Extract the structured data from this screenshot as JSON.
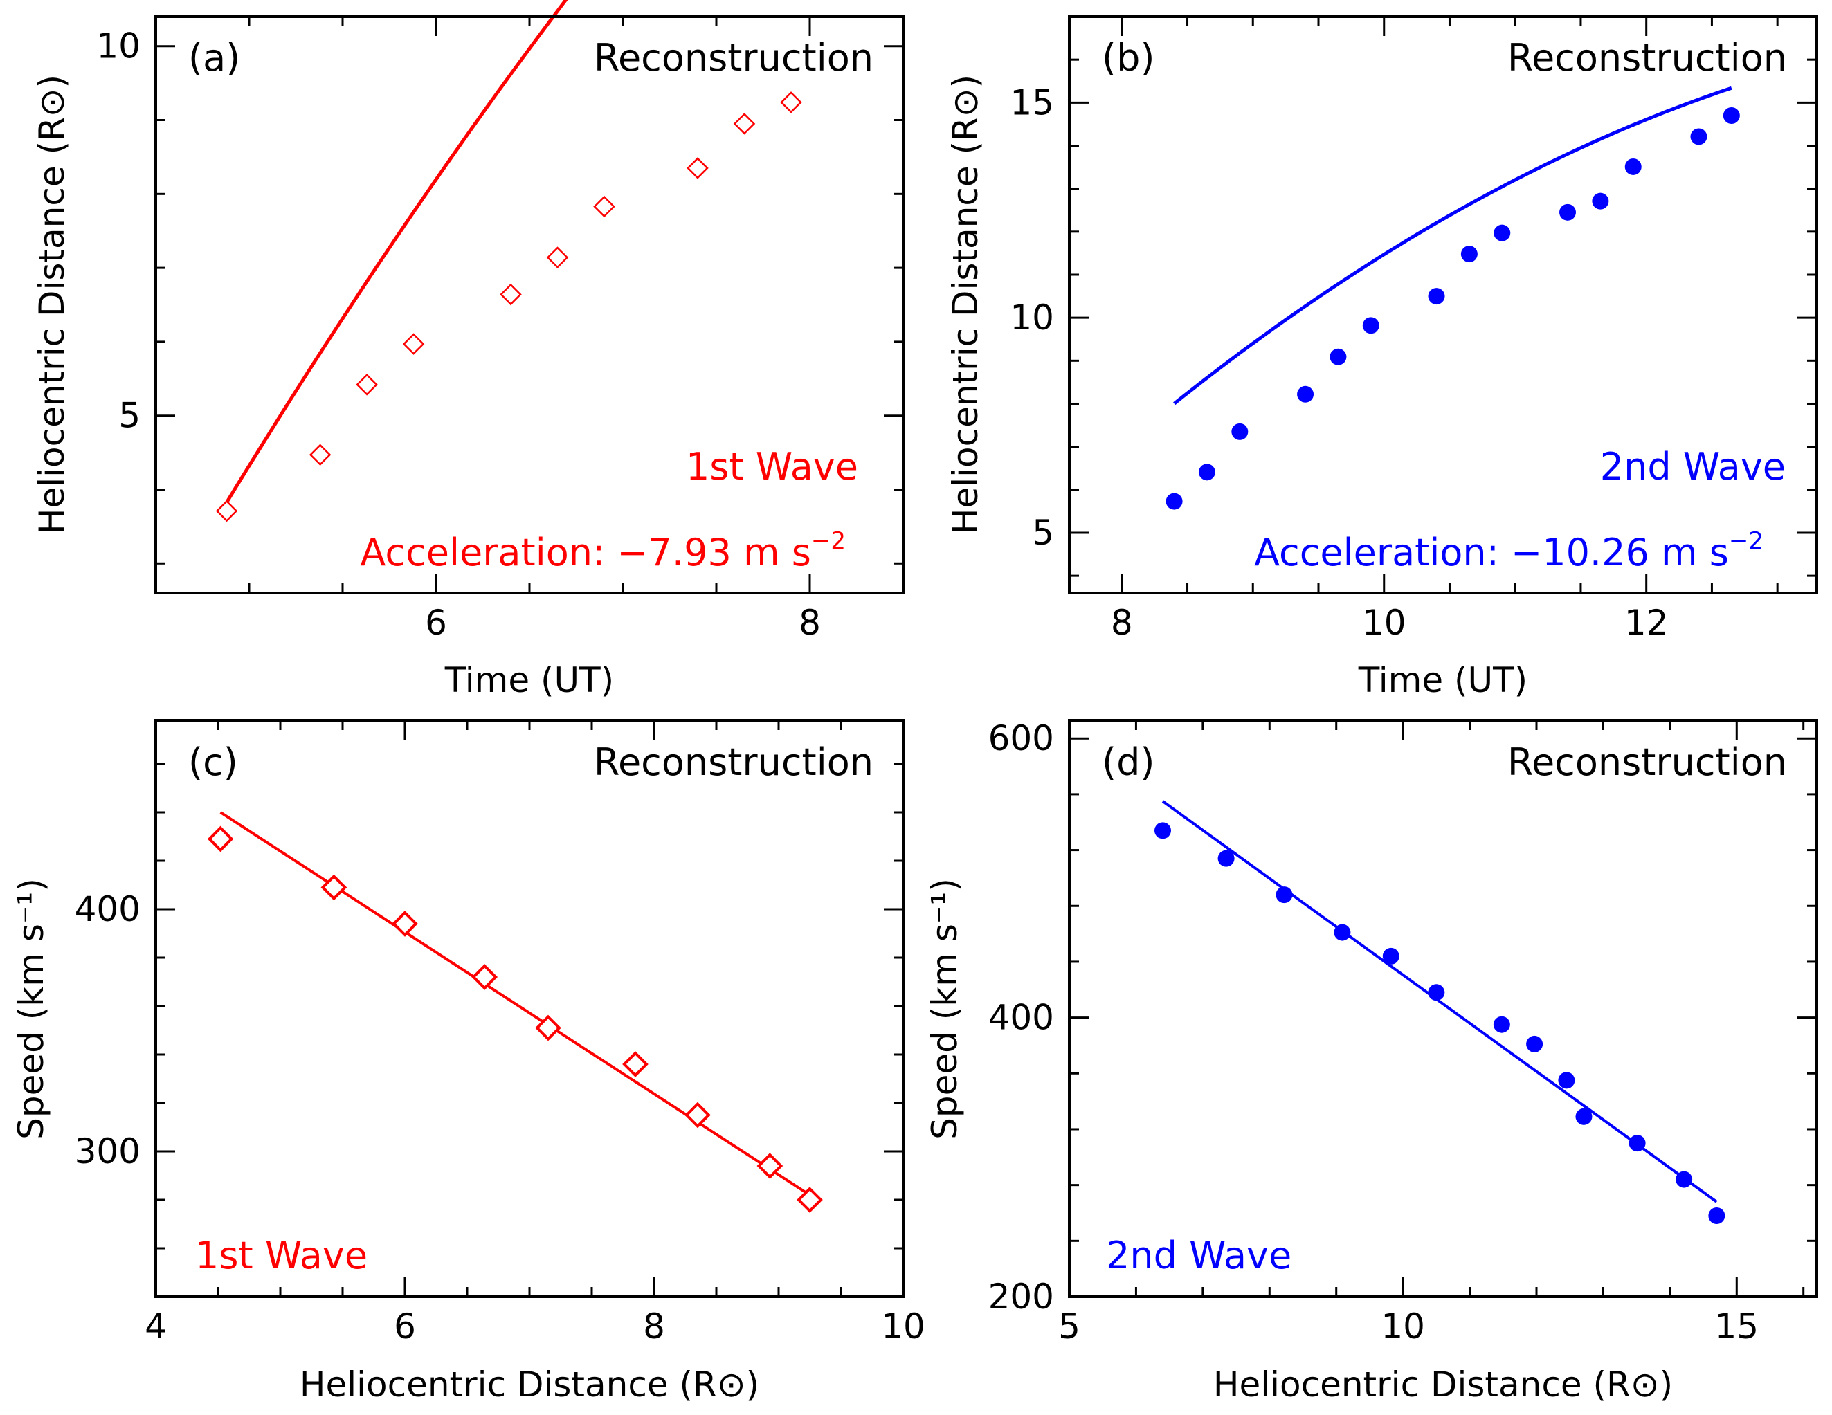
{
  "colors": {
    "first_wave": "#ff0000",
    "second_wave": "#0000ff",
    "axes": "#000000"
  },
  "chart_data": [
    {
      "panel": "(a)",
      "type": "scatter",
      "title": "Reconstruction",
      "xlabel": "Time (UT)",
      "ylabel": "Heliocentric Distance (R⊙)",
      "xlim": [
        4.5,
        8.5
      ],
      "ylim": [
        2.6,
        10.4
      ],
      "xticks": [
        6,
        8
      ],
      "xtick_labels": [
        "6",
        "8"
      ],
      "yticks": [
        5,
        10
      ],
      "ytick_labels": [
        "5",
        "10"
      ],
      "minor_x": 0.5,
      "minor_y": 1,
      "series": [
        {
          "name": "1st Wave",
          "color": "#ff0000",
          "marker": "diamond-open",
          "x": [
            4.88,
            5.38,
            5.63,
            5.88,
            6.4,
            6.65,
            6.9,
            7.4,
            7.65,
            7.9
          ],
          "y": [
            3.71,
            4.47,
            5.42,
            5.97,
            6.64,
            7.14,
            7.83,
            8.35,
            8.95,
            9.24
          ]
        }
      ],
      "fit": {
        "x": [
          4.88,
          7.9
        ],
        "coef": [
          -21.71,
          6.317,
          -0.2221
        ]
      },
      "annotations": {
        "label": "1st Wave",
        "acceleration": "Acceleration: −7.93 m s",
        "superscript": "−2"
      }
    },
    {
      "panel": "(b)",
      "type": "scatter",
      "title": "Reconstruction",
      "xlabel": "Time (UT)",
      "ylabel": "Heliocentric Distance (R⊙)",
      "xlim": [
        7.6,
        13.3
      ],
      "ylim": [
        3.6,
        17
      ],
      "xticks": [
        8,
        10,
        12
      ],
      "xtick_labels": [
        "8",
        "10",
        "12"
      ],
      "yticks": [
        5,
        10,
        15
      ],
      "ytick_labels": [
        "5",
        "10",
        "15"
      ],
      "minor_x": 0.5,
      "minor_y": 1,
      "series": [
        {
          "name": "2nd Wave",
          "color": "#0000ff",
          "marker": "circle-filled",
          "x": [
            8.4,
            8.65,
            8.9,
            9.4,
            9.65,
            9.9,
            10.4,
            10.65,
            10.9,
            11.4,
            11.65,
            11.9,
            12.4,
            12.65
          ],
          "y": [
            5.73,
            6.41,
            7.35,
            8.22,
            9.09,
            9.82,
            10.5,
            11.48,
            11.97,
            12.45,
            12.71,
            13.51,
            14.21,
            14.7
          ]
        }
      ],
      "fit": {
        "x": [
          8.4,
          12.65
        ],
        "coef": [
          -24.16,
          5.225,
          -0.1662
        ]
      },
      "annotations": {
        "label": "2nd Wave",
        "acceleration": "Acceleration: −10.26 m s",
        "superscript": "−2"
      }
    },
    {
      "panel": "(c)",
      "type": "scatter",
      "title": "Reconstruction",
      "xlabel": "Heliocentric Distance (R⊙)",
      "ylabel": "Speed (km s⁻¹)",
      "xlim": [
        4,
        10
      ],
      "ylim": [
        240,
        478
      ],
      "xticks": [
        4,
        6,
        8,
        10
      ],
      "xtick_labels": [
        "4",
        "6",
        "8",
        "10"
      ],
      "yticks": [
        300,
        400
      ],
      "ytick_labels": [
        "300",
        "400"
      ],
      "minor_x": 0.5,
      "minor_y": 20,
      "series": [
        {
          "name": "1st Wave",
          "color": "#ff0000",
          "marker": "diamond-open",
          "x": [
            4.52,
            5.43,
            6.0,
            6.64,
            7.15,
            7.85,
            8.35,
            8.93,
            9.25
          ],
          "y": [
            429,
            409,
            394,
            372,
            351,
            336,
            315,
            294,
            280
          ]
        }
      ],
      "fit": {
        "x": [
          4.52,
          9.25
        ],
        "y": [
          440,
          282
        ]
      },
      "annotations": {
        "label": "1st Wave"
      }
    },
    {
      "panel": "(d)",
      "type": "scatter",
      "title": "Reconstruction",
      "xlabel": "Heliocentric Distance (R⊙)",
      "ylabel": "Speed (km s⁻¹)",
      "xlim": [
        5,
        16.2
      ],
      "ylim": [
        200,
        613
      ],
      "xticks": [
        5,
        10,
        15
      ],
      "xtick_labels": [
        "5",
        "10",
        "15"
      ],
      "yticks": [
        200,
        400,
        600
      ],
      "ytick_labels": [
        "200",
        "400",
        "600"
      ],
      "minor_x": 1,
      "minor_y": 40,
      "series": [
        {
          "name": "2nd Wave",
          "color": "#0000ff",
          "marker": "circle-filled",
          "x": [
            6.4,
            7.35,
            8.22,
            9.09,
            9.82,
            10.5,
            11.48,
            11.97,
            12.45,
            12.71,
            13.51,
            14.21,
            14.7
          ],
          "y": [
            534,
            514,
            488,
            461,
            444,
            418,
            395,
            381,
            355,
            329,
            310,
            284,
            258
          ]
        }
      ],
      "fit": {
        "x": [
          6.4,
          14.7
        ],
        "y": [
          555,
          268
        ]
      },
      "annotations": {
        "label": "2nd Wave"
      }
    }
  ]
}
